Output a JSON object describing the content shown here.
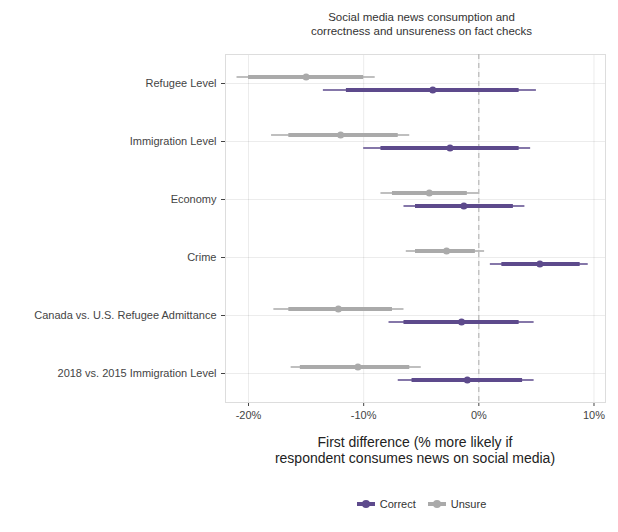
{
  "chart_data": {
    "type": "dot_whisker",
    "orientation": "horizontal",
    "title": "Social media news consumption and\ncorrectness and unsureness on fact checks",
    "x_label": "First difference (% more likely if\nrespondent consumes news on social media)",
    "categories": [
      "Refugee Level",
      "Immigration Level",
      "Economy",
      "Crime",
      "Canada vs. U.S. Refugee Admittance",
      "2018 vs. 2015 Immigration Level"
    ],
    "series": [
      {
        "name": "Correct",
        "color": "#5d4a8c",
        "values": [
          -4,
          -2.5,
          -1.3,
          5.3,
          -1.5,
          -1
        ],
        "inner_interval": [
          [
            -11.5,
            3.5
          ],
          [
            -8.5,
            3.5
          ],
          [
            -5.5,
            3
          ],
          [
            2,
            8.8
          ],
          [
            -6.5,
            3.5
          ],
          [
            -5.8,
            3.8
          ]
        ],
        "outer_interval": [
          [
            -13.5,
            5
          ],
          [
            -10,
            4.5
          ],
          [
            -6.5,
            4
          ],
          [
            1,
            9.5
          ],
          [
            -7.8,
            4.8
          ],
          [
            -7,
            4.8
          ]
        ]
      },
      {
        "name": "Unsure",
        "color": "#aaaaaa",
        "values": [
          -15,
          -12,
          -4.3,
          -2.8,
          -12.2,
          -10.5
        ],
        "inner_interval": [
          [
            -20,
            -10
          ],
          [
            -16.5,
            -7
          ],
          [
            -7.5,
            -1
          ],
          [
            -5.5,
            -0.3
          ],
          [
            -16.5,
            -7.5
          ],
          [
            -15.5,
            -6
          ]
        ],
        "outer_interval": [
          [
            -21,
            -9
          ],
          [
            -18,
            -6
          ],
          [
            -8.5,
            0
          ],
          [
            -6.3,
            0.5
          ],
          [
            -17.8,
            -6.5
          ],
          [
            -16.3,
            -5
          ]
        ]
      }
    ],
    "reference_line": 0,
    "xlim": [
      -22,
      11
    ],
    "xticks": [
      {
        "value": -20,
        "label": "-20%"
      },
      {
        "value": -10,
        "label": "-10%"
      },
      {
        "value": 0,
        "label": "0%"
      },
      {
        "value": 10,
        "label": "10%"
      }
    ],
    "grid": true,
    "legend": "bottom"
  }
}
